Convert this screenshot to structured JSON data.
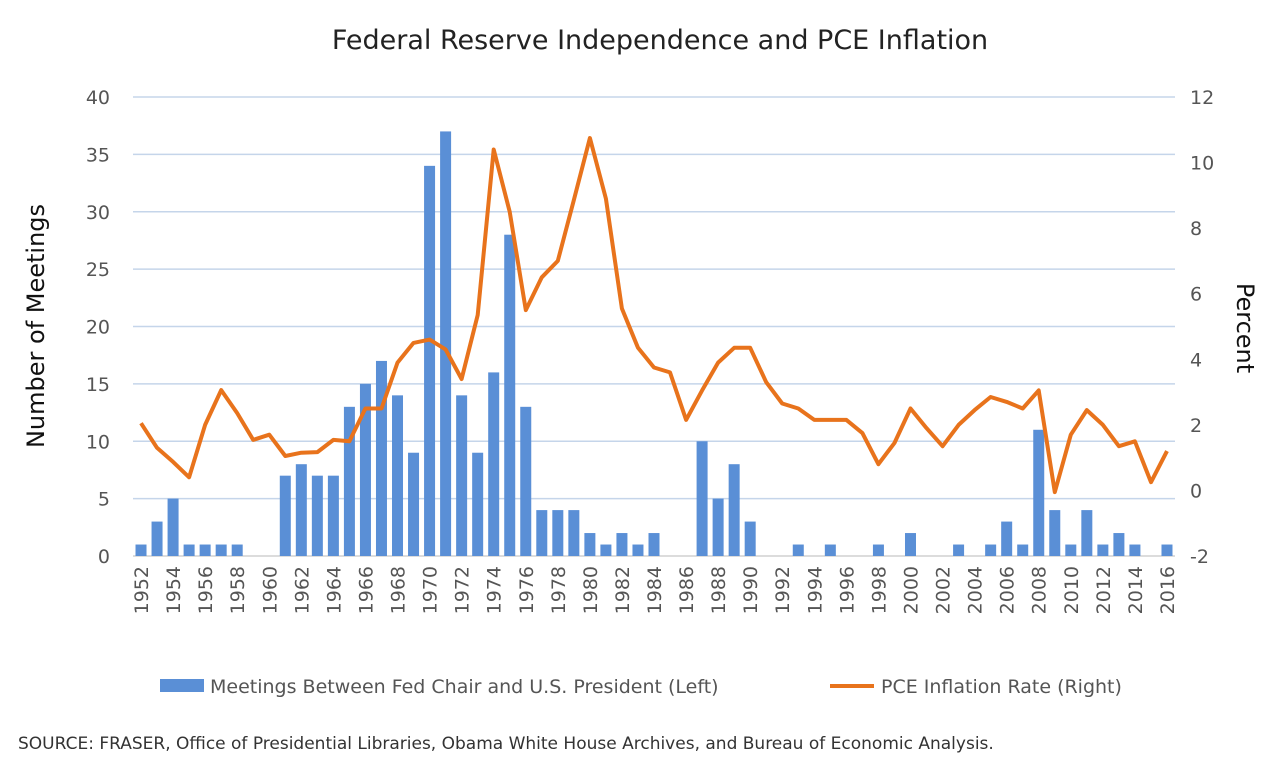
{
  "chart_data": {
    "type": "bar+line",
    "title": "Federal Reserve Independence and PCE Inflation",
    "ylabel_left": "Number of Meetings",
    "ylabel_right": "Percent",
    "ylim_left": [
      0,
      40
    ],
    "yticks_left": [
      0,
      5,
      10,
      15,
      20,
      25,
      30,
      35,
      40
    ],
    "ylim_right": [
      -2,
      12
    ],
    "yticks_right": [
      -2,
      0,
      2,
      4,
      6,
      8,
      10,
      12
    ],
    "grid": true,
    "legend_position": "bottom",
    "years": [
      1952,
      1953,
      1954,
      1955,
      1956,
      1957,
      1958,
      1959,
      1960,
      1961,
      1962,
      1963,
      1964,
      1965,
      1966,
      1967,
      1968,
      1969,
      1970,
      1971,
      1972,
      1973,
      1974,
      1975,
      1976,
      1977,
      1978,
      1979,
      1980,
      1981,
      1982,
      1983,
      1984,
      1985,
      1986,
      1987,
      1988,
      1989,
      1990,
      1991,
      1992,
      1993,
      1994,
      1995,
      1996,
      1997,
      1998,
      1999,
      2000,
      2001,
      2002,
      2003,
      2004,
      2005,
      2006,
      2007,
      2008,
      2009,
      2010,
      2011,
      2012,
      2013,
      2014,
      2015,
      2016
    ],
    "series": [
      {
        "name": "Meetings Between Fed Chair and U.S. President (Left)",
        "type": "bar",
        "axis": "left",
        "color": "#5a8fd6",
        "values": [
          1,
          3,
          5,
          1,
          1,
          1,
          1,
          0,
          0,
          7,
          8,
          7,
          7,
          13,
          15,
          17,
          14,
          9,
          34,
          37,
          14,
          9,
          16,
          28,
          13,
          4,
          4,
          4,
          2,
          1,
          2,
          1,
          2,
          0,
          0,
          10,
          5,
          8,
          3,
          0,
          0,
          1,
          0,
          1,
          0,
          0,
          1,
          0,
          2,
          0,
          0,
          1,
          0,
          1,
          3,
          1,
          11,
          4,
          1,
          4,
          1,
          2,
          1,
          0,
          1
        ]
      },
      {
        "name": "PCE Inflation Rate (Right)",
        "type": "line",
        "axis": "right",
        "color": "#e8731c",
        "values": [
          2.05,
          1.3,
          0.87,
          0.4,
          2.0,
          3.06,
          2.36,
          1.54,
          1.7,
          1.05,
          1.15,
          1.17,
          1.54,
          1.5,
          2.5,
          2.5,
          3.9,
          4.5,
          4.6,
          4.3,
          3.4,
          5.35,
          10.4,
          8.5,
          5.5,
          6.5,
          7.0,
          8.85,
          10.75,
          8.9,
          5.55,
          4.35,
          3.75,
          3.6,
          2.15,
          3.05,
          3.9,
          4.35,
          4.35,
          3.3,
          2.65,
          2.5,
          2.15,
          2.15,
          2.15,
          1.75,
          0.8,
          1.45,
          2.5,
          1.9,
          1.35,
          2.0,
          2.45,
          2.85,
          2.7,
          2.5,
          3.05,
          -0.05,
          1.7,
          2.45,
          2.0,
          1.35,
          1.5,
          0.25,
          1.2
        ]
      }
    ],
    "source": "SOURCE:  FRASER,  Office of Presidential Libraries, Obama White House Archives, and Bureau of Economic Analysis."
  }
}
